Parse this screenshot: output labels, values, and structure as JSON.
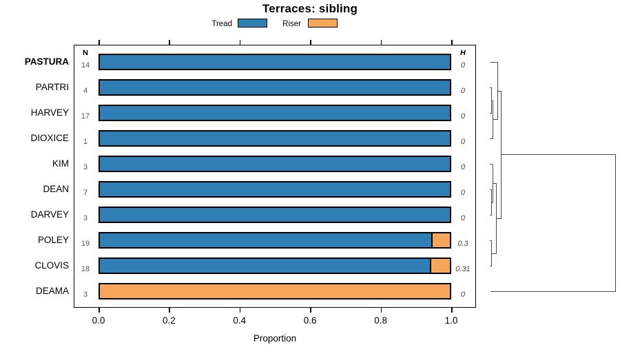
{
  "title": "Terraces: sibling",
  "colors": {
    "tread": "#2f7fb5",
    "riser": "#f9a65d",
    "bar_border": "#000000",
    "dendrogram_line": "#4a4a4a",
    "muted_text": "#555555"
  },
  "chart_data": {
    "type": "bar",
    "subtype": "stacked-horizontal-proportion-with-dendrogram",
    "title": "Terraces: sibling",
    "xlabel": "Proportion",
    "xlim": [
      0,
      1
    ],
    "xticks": [
      0,
      0.2,
      0.4,
      0.6,
      0.8,
      1
    ],
    "xtick_labels": [
      "0.0",
      "0.2",
      "0.4",
      "0.6",
      "0.8",
      "1.0"
    ],
    "grid": false,
    "legend_position": "top-center",
    "legend": [
      {
        "label": "Tread",
        "color": "#2f7fb5"
      },
      {
        "label": "Riser",
        "color": "#f9a65d"
      }
    ],
    "n_column_header": "N",
    "h_column_header": "H",
    "rows": [
      {
        "label": "PASTURA",
        "emphasis": true,
        "n": 14,
        "h": "0",
        "tread": 1.0,
        "riser": 0.0
      },
      {
        "label": "PARTRI",
        "emphasis": false,
        "n": 4,
        "h": "0",
        "tread": 1.0,
        "riser": 0.0
      },
      {
        "label": "HARVEY",
        "emphasis": false,
        "n": 17,
        "h": "0",
        "tread": 1.0,
        "riser": 0.0
      },
      {
        "label": "DIOXICE",
        "emphasis": false,
        "n": 1,
        "h": "0",
        "tread": 1.0,
        "riser": 0.0
      },
      {
        "label": "KIM",
        "emphasis": false,
        "n": 3,
        "h": "0",
        "tread": 1.0,
        "riser": 0.0
      },
      {
        "label": "DEAN",
        "emphasis": false,
        "n": 7,
        "h": "0",
        "tread": 1.0,
        "riser": 0.0
      },
      {
        "label": "DARVEY",
        "emphasis": false,
        "n": 3,
        "h": "0",
        "tread": 1.0,
        "riser": 0.0
      },
      {
        "label": "POLEY",
        "emphasis": false,
        "n": 19,
        "h": "0.3",
        "tread": 0.947,
        "riser": 0.053
      },
      {
        "label": "CLOVIS",
        "emphasis": false,
        "n": 18,
        "h": "0.31",
        "tread": 0.944,
        "riser": 0.056
      },
      {
        "label": "DEAMA",
        "emphasis": false,
        "n": 3,
        "h": "0",
        "tread": 0.0,
        "riser": 1.0
      }
    ],
    "dendrogram": {
      "side": "right",
      "merges": [
        [
          "PARTRI",
          "HARVEY"
        ],
        [
          "(PARTRI,HARVEY)",
          "DIOXICE"
        ],
        [
          "PASTURA",
          "(PARTRI,HARVEY,DIOXICE)"
        ],
        [
          "DEAN",
          "DARVEY"
        ],
        [
          "KIM",
          "(DEAN,DARVEY)"
        ],
        [
          "POLEY",
          "CLOVIS"
        ],
        [
          "(KIM,DEAN,DARVEY)",
          "(POLEY,CLOVIS)"
        ],
        [
          "(PASTURA,PARTRI,HARVEY,DIOXICE)",
          "(KIM,DEAN,DARVEY,POLEY,CLOVIS)"
        ],
        [
          "(all-others)",
          "DEAMA"
        ]
      ],
      "segments": [
        [
          712,
          90,
          721.5,
          90
        ],
        [
          711,
          127,
          713,
          127
        ],
        [
          711,
          164,
          713,
          164
        ],
        [
          713,
          127,
          713,
          164
        ],
        [
          713,
          145.5,
          715,
          145.5
        ],
        [
          711,
          201,
          715,
          201
        ],
        [
          715,
          145.5,
          715,
          201
        ],
        [
          715,
          173,
          721.5,
          173
        ],
        [
          721.5,
          90,
          721.5,
          173
        ],
        [
          721.5,
          131.5,
          727,
          131.5
        ],
        [
          711,
          238,
          713,
          238
        ],
        [
          711,
          275,
          713,
          275
        ],
        [
          711,
          312,
          713,
          312
        ],
        [
          713,
          275,
          713,
          312
        ],
        [
          713,
          293.5,
          715,
          293.5
        ],
        [
          715,
          238,
          715,
          293.5
        ],
        [
          715,
          266,
          720,
          266
        ],
        [
          711,
          349,
          713,
          349
        ],
        [
          711,
          386,
          713,
          386
        ],
        [
          713,
          349,
          713,
          386
        ],
        [
          713,
          367.5,
          720,
          367.5
        ],
        [
          720,
          266,
          720,
          367.5
        ],
        [
          720,
          317,
          727,
          317
        ],
        [
          727,
          131.5,
          727,
          317
        ],
        [
          727,
          224,
          893,
          224
        ],
        [
          712,
          423,
          893,
          423
        ],
        [
          893,
          224,
          893,
          423
        ]
      ]
    }
  }
}
